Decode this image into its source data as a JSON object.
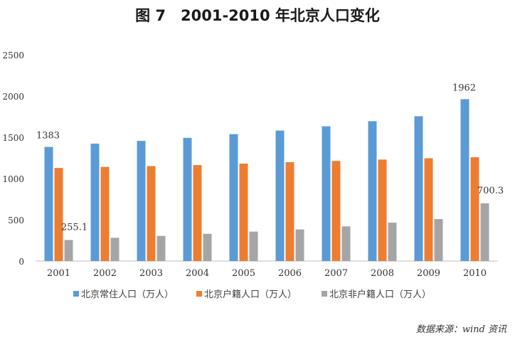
{
  "title": "图 7　2001-2010 年北京人口变化",
  "source": "数据来源：wind 资讯",
  "chart_data": {
    "type": "bar",
    "categories": [
      "2001",
      "2002",
      "2003",
      "2004",
      "2005",
      "2006",
      "2007",
      "2008",
      "2009",
      "2010"
    ],
    "series": [
      {
        "name": "北京常住人口（万人）",
        "color": "#5B9BD5",
        "values": [
          1383,
          1423,
          1456,
          1493,
          1538,
          1581,
          1633,
          1695,
          1755,
          1962
        ]
      },
      {
        "name": "北京户籍人口（万人）",
        "color": "#ED7D31",
        "values": [
          1128,
          1141,
          1151,
          1163,
          1181,
          1198,
          1213,
          1230,
          1246,
          1258
        ]
      },
      {
        "name": "北京非户籍人口（万人）",
        "color": "#A5A5A5",
        "values": [
          255.1,
          282,
          305,
          330,
          357,
          383,
          420,
          465,
          509,
          700.3
        ]
      }
    ],
    "data_labels": [
      {
        "series": 0,
        "index": 0,
        "text": "1383"
      },
      {
        "series": 2,
        "index": 0,
        "text": "255.1"
      },
      {
        "series": 0,
        "index": 9,
        "text": "1962"
      },
      {
        "series": 2,
        "index": 9,
        "text": "700.3"
      }
    ],
    "ylim": [
      0,
      2500
    ],
    "yticks": [
      0,
      500,
      1000,
      1500,
      2000,
      2500
    ],
    "grid": false,
    "legend": "bottom"
  }
}
